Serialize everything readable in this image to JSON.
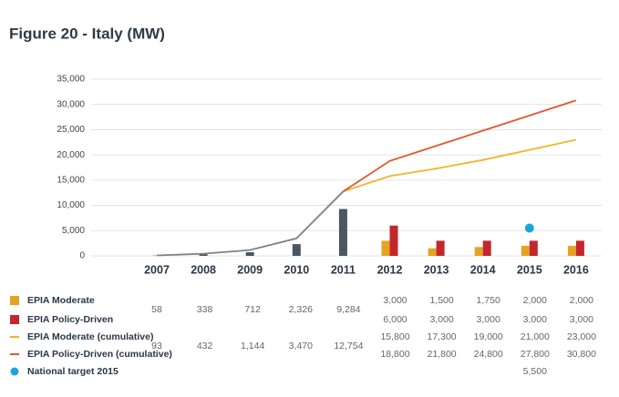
{
  "chart_data": {
    "type": "bar",
    "title": "Figure 20 - Italy (MW)",
    "categories": [
      "2007",
      "2008",
      "2009",
      "2010",
      "2011",
      "2012",
      "2013",
      "2014",
      "2015",
      "2016"
    ],
    "ylim": [
      0,
      35000
    ],
    "yticks": [
      0,
      {
        "value": 5000,
        "label": "5,000"
      },
      {
        "value": 10000,
        "label": "10,000"
      },
      {
        "value": 15000,
        "label": "15,000"
      },
      {
        "value": 20000,
        "label": "20,000"
      },
      {
        "value": 25000,
        "label": "25,000"
      },
      {
        "value": 30000,
        "label": "30,000"
      },
      {
        "value": 35000,
        "label": "35,000"
      }
    ],
    "grid": true,
    "history": {
      "color": "#4a5661",
      "line_color": "#7d8288",
      "values": [
        58,
        338,
        712,
        2326,
        9284,
        null,
        null,
        null,
        null,
        null
      ],
      "value_labels": [
        "58",
        "338",
        "712",
        "2,326",
        "9,284",
        null,
        null,
        null,
        null,
        null
      ],
      "cumulative": [
        93,
        432,
        1144,
        3470,
        12754,
        null,
        null,
        null,
        null,
        null
      ],
      "cumulative_labels": [
        "93",
        "432",
        "1,144",
        "3,470",
        "12,754",
        null,
        null,
        null,
        null,
        null
      ]
    },
    "series": [
      {
        "name": "EPIA Moderate",
        "type": "bar",
        "color": "#e5a322",
        "values": [
          null,
          null,
          null,
          null,
          null,
          3000,
          1500,
          1750,
          2000,
          2000
        ],
        "value_labels": [
          null,
          null,
          null,
          null,
          null,
          "3,000",
          "1,500",
          "1,750",
          "2,000",
          "2,000"
        ]
      },
      {
        "name": "EPIA Policy-Driven",
        "type": "bar",
        "color": "#c4262e",
        "values": [
          null,
          null,
          null,
          null,
          null,
          6000,
          3000,
          3000,
          3000,
          3000
        ],
        "value_labels": [
          null,
          null,
          null,
          null,
          null,
          "6,000",
          "3,000",
          "3,000",
          "3,000",
          "3,000"
        ]
      },
      {
        "name": "EPIA Moderate (cumulative)",
        "type": "line",
        "color": "#f2b42c",
        "values": [
          null,
          null,
          null,
          null,
          null,
          15800,
          17300,
          19000,
          21000,
          23000
        ],
        "value_labels": [
          null,
          null,
          null,
          null,
          null,
          "15,800",
          "17,300",
          "19,000",
          "21,000",
          "23,000"
        ]
      },
      {
        "name": "EPIA Policy-Driven (cumulative)",
        "type": "line",
        "color": "#e2572b",
        "values": [
          null,
          null,
          null,
          null,
          null,
          18800,
          21800,
          24800,
          27800,
          30800
        ],
        "value_labels": [
          null,
          null,
          null,
          null,
          null,
          "18,800",
          "21,800",
          "24,800",
          "27,800",
          "30,800"
        ]
      },
      {
        "name": "National target 2015",
        "type": "scatter",
        "color": "#1aa6dc",
        "values": [
          null,
          null,
          null,
          null,
          null,
          null,
          null,
          null,
          5500,
          null
        ],
        "value_labels": [
          null,
          null,
          null,
          null,
          null,
          null,
          null,
          null,
          "5,500",
          null
        ]
      }
    ]
  }
}
